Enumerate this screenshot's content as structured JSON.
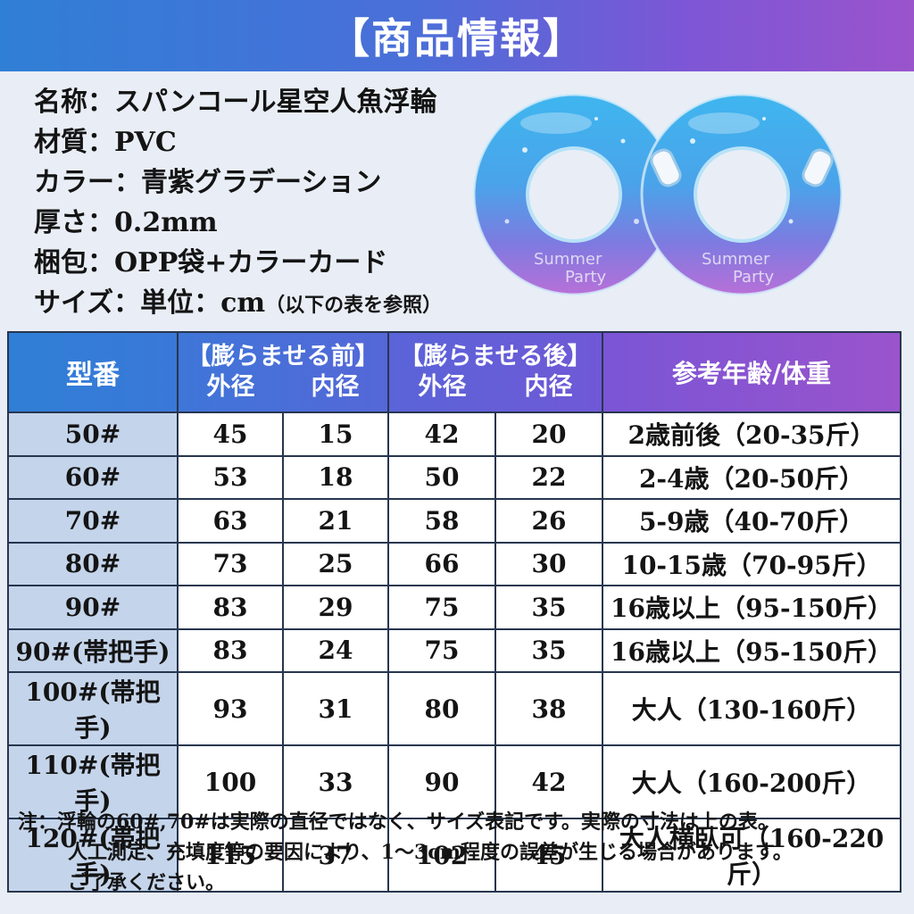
{
  "header": {
    "title": "【商品情報】"
  },
  "info": [
    {
      "label": "名称：スパンコール星空人魚浮輪"
    },
    {
      "label": "材質：PVC"
    },
    {
      "label": "カラー：青紫グラデーション"
    },
    {
      "label": "厚さ：0.2mm"
    },
    {
      "label": "梱包：OPP袋+カラーカード"
    },
    {
      "label": "サイズ：単位：cm",
      "note": "（以下の表を参照）"
    }
  ],
  "product_image": {
    "ring_text_1": "Summer",
    "ring_text_2": "Party"
  },
  "colors": {
    "header_start": "#2f7fd6",
    "header_end": "#9a54cc",
    "model_cell": "#c4d4ea"
  },
  "table": {
    "headers": {
      "model": "型番",
      "before": "【膨らませる前】",
      "after": "【膨らませる後】",
      "outer": "外径",
      "inner": "内径",
      "age": "参考年齢/体重"
    },
    "rows": [
      [
        "50#",
        "45",
        "15",
        "42",
        "20",
        "2歳前後（20-35斤）"
      ],
      [
        "60#",
        "53",
        "18",
        "50",
        "22",
        "2-4歳（20-50斤）"
      ],
      [
        "70#",
        "63",
        "21",
        "58",
        "26",
        "5-9歳（40-70斤）"
      ],
      [
        "80#",
        "73",
        "25",
        "66",
        "30",
        "10-15歳（70-95斤）"
      ],
      [
        "90#",
        "83",
        "29",
        "75",
        "35",
        "16歳以上（95-150斤）"
      ],
      [
        "90#(帯把手)",
        "83",
        "24",
        "75",
        "35",
        "16歳以上（95-150斤）"
      ],
      [
        "100#(帯把手)",
        "93",
        "31",
        "80",
        "38",
        "大人（130-160斤）"
      ],
      [
        "110#(帯把手)",
        "100",
        "33",
        "90",
        "42",
        "大人（160-200斤）"
      ],
      [
        "120#(帯把手)",
        "115",
        "37",
        "102",
        "45",
        "大人横臥可（160-220斤）"
      ]
    ]
  },
  "footnote": {
    "line1": "注：浮輪の60#,70#は実際の直径ではなく、サイズ表記です。実際の寸法は上の表。",
    "line2": "人工測定、充填度等の要因により、1～3cm程度の誤差が生じる場合があります。",
    "line3": "ご了承ください。"
  }
}
